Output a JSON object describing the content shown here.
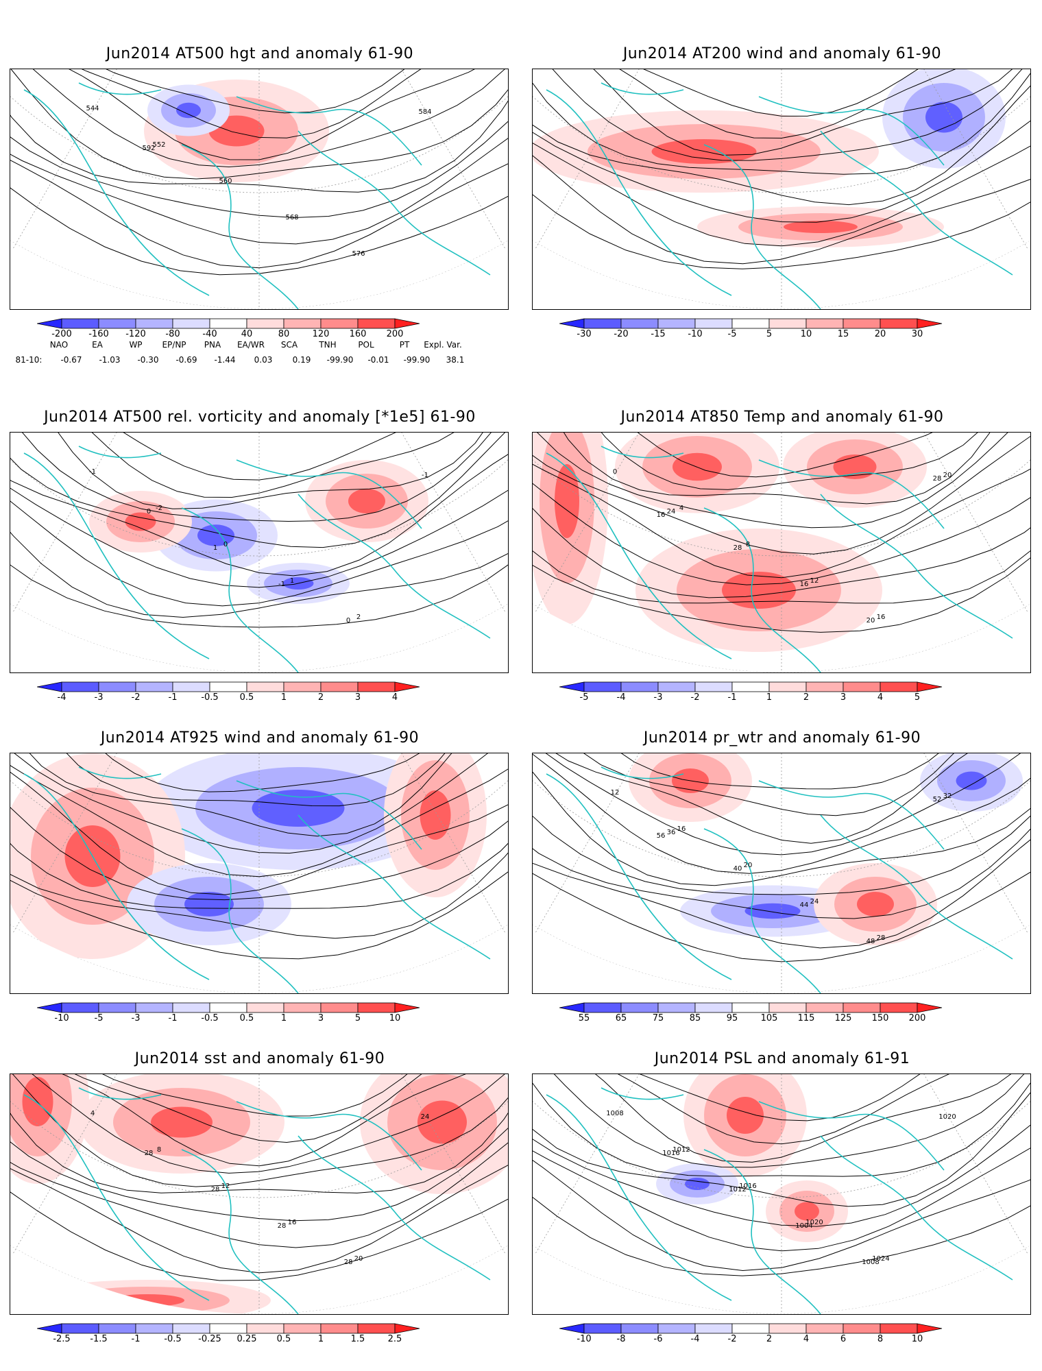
{
  "panels": [
    {
      "title": "Jun2014 AT500 hgt and anomaly 61-90",
      "colorbar": [
        "-200",
        "-160",
        "-120",
        "-80",
        "-40",
        "40",
        "80",
        "120",
        "160",
        "200"
      ],
      "contour_labels": [
        "544",
        "552",
        "560",
        "568",
        "576",
        "584",
        "592"
      ]
    },
    {
      "title": "Jun2014 AT200 wind and anomaly 61-90",
      "colorbar": [
        "-30",
        "-20",
        "-15",
        "-10",
        "-5",
        "5",
        "10",
        "15",
        "20",
        "30"
      ],
      "contour_labels": []
    },
    {
      "title": "Jun2014 AT500 rel. vorticity and anomaly [*1e5] 61-90",
      "colorbar": [
        "-4",
        "-3",
        "-2",
        "-1",
        "-0.5",
        "0.5",
        "1",
        "2",
        "3",
        "4"
      ],
      "contour_labels": [
        "-1",
        "-2",
        "0",
        "1",
        "2",
        "-1",
        "0",
        "1",
        "-1",
        "0"
      ]
    },
    {
      "title": "Jun2014 AT850 Temp and anomaly 61-90",
      "colorbar": [
        "-5",
        "-4",
        "-3",
        "-2",
        "-1",
        "1",
        "2",
        "3",
        "4",
        "5"
      ],
      "contour_labels": [
        "0",
        "4",
        "8",
        "12",
        "16",
        "20",
        "24",
        "28",
        "16",
        "20",
        "28",
        "16"
      ]
    },
    {
      "title": "Jun2014 AT925 wind and anomaly 61-90",
      "colorbar": [
        "-10",
        "-5",
        "-3",
        "-1",
        "-0.5",
        "0.5",
        "1",
        "3",
        "5",
        "10"
      ],
      "contour_labels": []
    },
    {
      "title": "Jun2014 pr_wtr and anomaly 61-90",
      "colorbar": [
        "55",
        "65",
        "75",
        "85",
        "95",
        "105",
        "115",
        "125",
        "150",
        "200"
      ],
      "contour_labels": [
        "12",
        "16",
        "20",
        "24",
        "28",
        "32",
        "36",
        "40",
        "44",
        "48",
        "52",
        "56"
      ]
    },
    {
      "title": "Jun2014 sst and anomaly 61-90",
      "colorbar": [
        "-2.5",
        "-1.5",
        "-1",
        "-0.5",
        "-0.25",
        "0.25",
        "0.5",
        "1",
        "1.5",
        "2.5"
      ],
      "contour_labels": [
        "4",
        "8",
        "12",
        "16",
        "20",
        "24",
        "28",
        "28",
        "28",
        "28"
      ]
    },
    {
      "title": "Jun2014 PSL and anomaly 61-91",
      "colorbar": [
        "-10",
        "-8",
        "-6",
        "-4",
        "-2",
        "2",
        "4",
        "6",
        "8",
        "10"
      ],
      "contour_labels": [
        "1008",
        "1012",
        "1016",
        "1020",
        "1024",
        "1020",
        "1016",
        "1012",
        "1004",
        "1008"
      ]
    }
  ],
  "teleconnections": {
    "headers": [
      "NAO",
      "EA",
      "WP",
      "EP/NP",
      "PNA",
      "EA/WR",
      "SCA",
      "TNH",
      "POL",
      "PT",
      "Expl. Var."
    ],
    "row_label": "81-10:",
    "values": [
      "-0.67",
      "-1.03",
      "-0.30",
      "-0.69",
      "-1.44",
      "0.03",
      "0.19",
      "-99.90",
      "-0.01",
      "-99.90",
      "38.1"
    ]
  },
  "colors": {
    "coast": "#20c0c0",
    "contour": "#000000",
    "blue_dark": "#2020ff",
    "blue_light": "#d8d8ff",
    "red_dark": "#ff2020",
    "red_light": "#ffe0e0"
  }
}
